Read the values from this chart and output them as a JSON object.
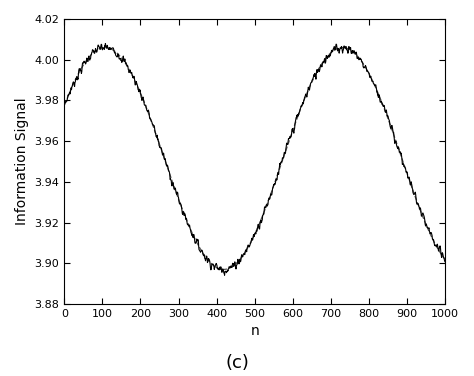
{
  "title": "",
  "xlabel": "n",
  "ylabel": "Information Signal",
  "label_c": "(c)",
  "xlim": [
    0,
    1000
  ],
  "ylim": [
    3.88,
    4.02
  ],
  "yticks": [
    3.88,
    3.9,
    3.92,
    3.94,
    3.96,
    3.98,
    4.0,
    4.02
  ],
  "xticks": [
    0,
    100,
    200,
    300,
    400,
    500,
    600,
    700,
    800,
    900,
    1000
  ],
  "n_points": 1000,
  "signal_mean": 3.9515,
  "signal_amplitude": 0.0545,
  "signal_period": 624,
  "signal_phase_deg": -61,
  "noise_amplitude": 0.0018,
  "noise_seed": 7,
  "solid_color": "#000000",
  "dashed_color": "#555555",
  "linewidth_solid": 0.8,
  "linewidth_dashed": 0.9,
  "background_color": "#ffffff",
  "figsize": [
    4.74,
    3.76
  ],
  "dpi": 100
}
